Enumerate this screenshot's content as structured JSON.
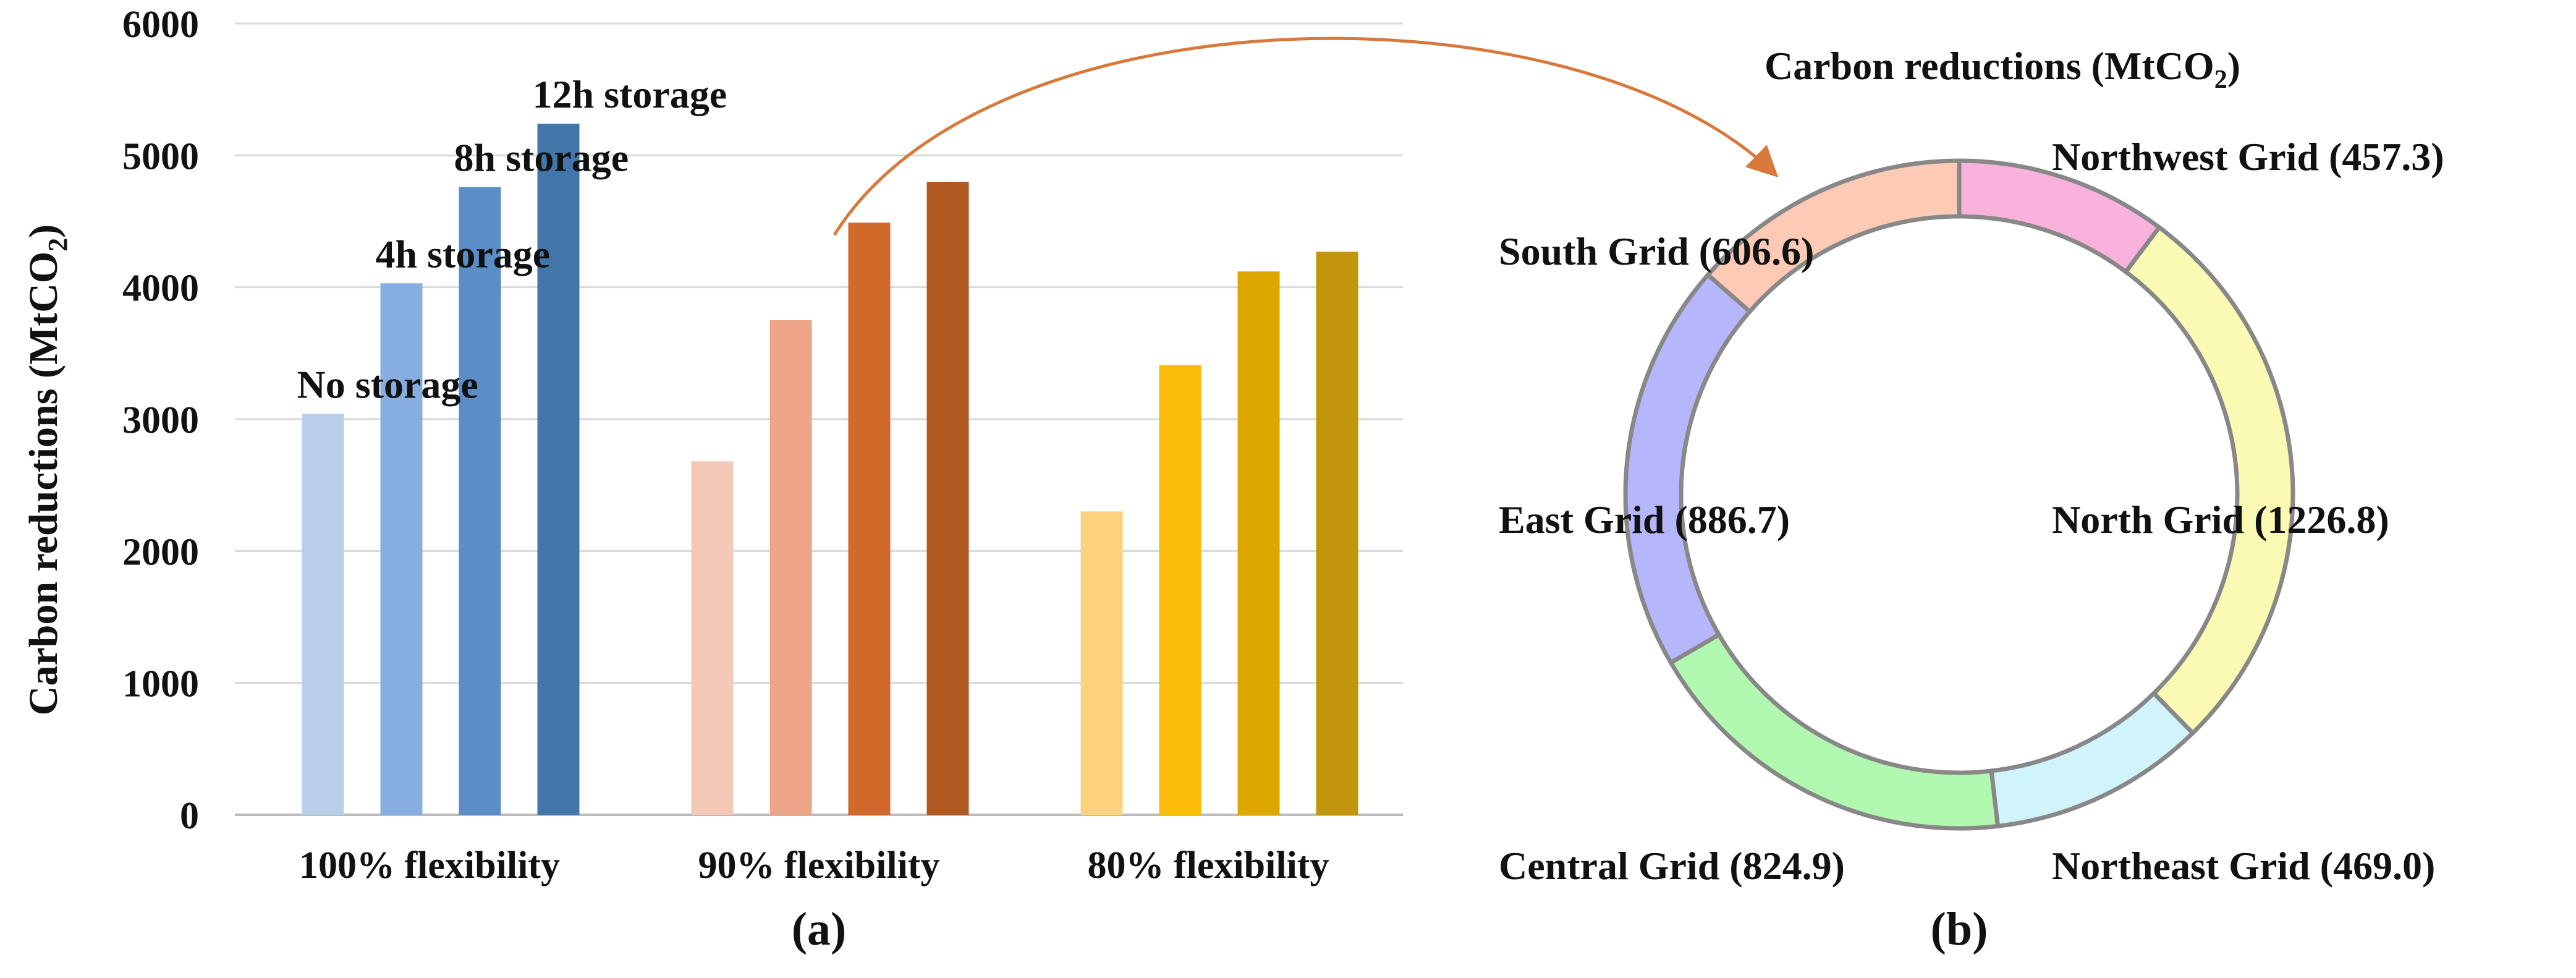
{
  "chart_data": [
    {
      "type": "bar",
      "panel_label": "(a)",
      "ylabel": "Carbon reductions (MtCO",
      "ylabel_sub": "2",
      "ylabel_suffix": ")",
      "ylim": [
        0,
        6000
      ],
      "yticks": [
        "0",
        "1000",
        "2000",
        "3000",
        "4000",
        "5000",
        "6000"
      ],
      "grid": true,
      "groups": [
        "100% flexibility",
        "90% flexibility",
        "80% flexibility"
      ],
      "series_labels": [
        "No storage",
        "4h storage",
        "8h storage",
        "12h storage"
      ],
      "values": [
        [
          3040,
          4030,
          4760,
          5240
        ],
        [
          2680,
          3750,
          4490,
          4800
        ],
        [
          2300,
          3410,
          4120,
          4270
        ]
      ],
      "colors": [
        [
          "#b8cfea",
          "#87aee0",
          "#5b8dc6",
          "#4377aa"
        ],
        [
          "#f3c8b6",
          "#eea486",
          "#d1692a",
          "#b05920"
        ],
        [
          "#fed27f",
          "#fbbd0a",
          "#dea700",
          "#c3950b"
        ]
      ]
    },
    {
      "type": "pie",
      "donut": true,
      "panel_label": "(b)",
      "title": "Carbon reductions (MtCO",
      "title_sub": "2",
      "title_suffix": ")",
      "slices": [
        {
          "label": "Northwest Grid",
          "value": 457.3,
          "value_text": "(457.3)",
          "color": "#f8b2dc"
        },
        {
          "label": "North Grid",
          "value": 1226.8,
          "value_text": "(1226.8)",
          "color": "#fbfab4"
        },
        {
          "label": "Northeast Grid",
          "value": 469.0,
          "value_text": "(469.0)",
          "color": "#d1f3fb"
        },
        {
          "label": "Central Grid",
          "value": 824.9,
          "value_text": "(824.9)",
          "color": "#b1f8b0"
        },
        {
          "label": "East Grid",
          "value": 886.7,
          "value_text": "(886.7)",
          "color": "#b6b6fc"
        },
        {
          "label": "South Grid",
          "value": 606.6,
          "value_text": "(606.6)",
          "color": "#fdcab6"
        }
      ],
      "stroke_color": "#888888"
    }
  ],
  "arrow_color": "#d8783a"
}
